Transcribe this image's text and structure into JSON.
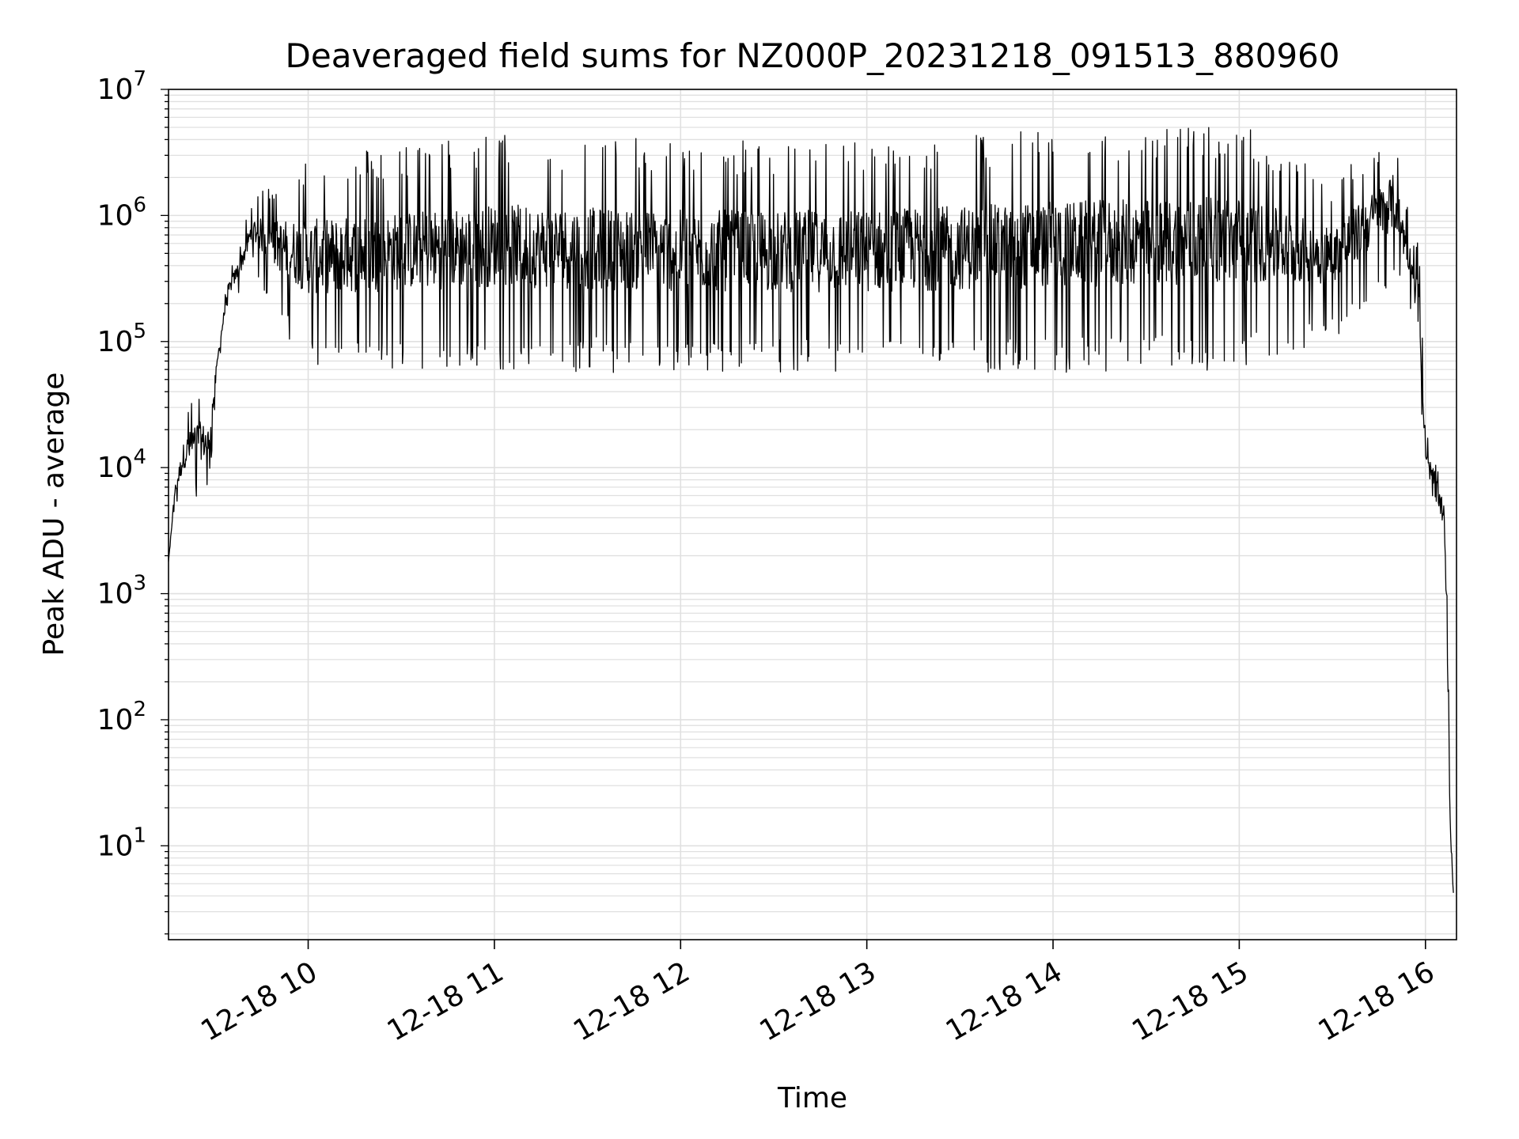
{
  "chart_data": {
    "type": "line",
    "title": "Deaveraged field sums for NZ000P_20231218_091513_880960",
    "xlabel": "Time",
    "ylabel": "Peak ADU - average",
    "yscale": "log",
    "ylim": [
      1.8,
      10000000
    ],
    "xlim": [
      "2023-12-18 09:15",
      "2023-12-18 16:10"
    ],
    "grid": true,
    "line_color": "#000000",
    "grid_color": "#e0e0e0",
    "x_ticks": [
      "12-18 10",
      "12-18 11",
      "12-18 12",
      "12-18 13",
      "12-18 14",
      "12-18 15",
      "12-18 16"
    ],
    "y_ticks": [
      {
        "base": "10",
        "exp": "1"
      },
      {
        "base": "10",
        "exp": "2"
      },
      {
        "base": "10",
        "exp": "3"
      },
      {
        "base": "10",
        "exp": "4"
      },
      {
        "base": "10",
        "exp": "5"
      },
      {
        "base": "10",
        "exp": "6"
      },
      {
        "base": "10",
        "exp": "7"
      }
    ],
    "series": [
      {
        "style": "noisy envelope (black line)",
        "x": [
          "2023-12-18 09:15",
          "2023-12-18 09:17",
          "2023-12-18 09:20",
          "2023-12-18 09:24",
          "2023-12-18 09:28",
          "2023-12-18 09:31",
          "2023-12-18 09:34",
          "2023-12-18 09:38",
          "2023-12-18 09:42",
          "2023-12-18 09:50",
          "2023-12-18 10:00",
          "2023-12-18 11:00",
          "2023-12-18 12:00",
          "2023-12-18 13:00",
          "2023-12-18 14:00",
          "2023-12-18 15:00",
          "2023-12-18 15:30",
          "2023-12-18 15:50",
          "2023-12-18 15:55",
          "2023-12-18 15:58",
          "2023-12-18 16:00",
          "2023-12-18 16:04",
          "2023-12-18 16:06",
          "2023-12-18 16:07",
          "2023-12-18 16:08",
          "2023-12-18 16:09"
        ],
        "low": [
          1800,
          5000,
          6000,
          5500,
          6500,
          60000,
          180000,
          250000,
          400000,
          150000,
          60000,
          60000,
          55000,
          55000,
          55000,
          60000,
          100000,
          300000,
          200000,
          50000,
          6000,
          5000,
          3000,
          200,
          10,
          3.5
        ],
        "high": [
          1800,
          8000,
          25000,
          45000,
          35000,
          100000,
          330000,
          600000,
          1400000,
          2000000,
          3000000,
          4500000,
          4000000,
          4000000,
          5000000,
          5500000,
          2000000,
          5000000,
          900000,
          600000,
          20000,
          10000,
          6000,
          1000,
          20,
          5
        ]
      }
    ]
  }
}
